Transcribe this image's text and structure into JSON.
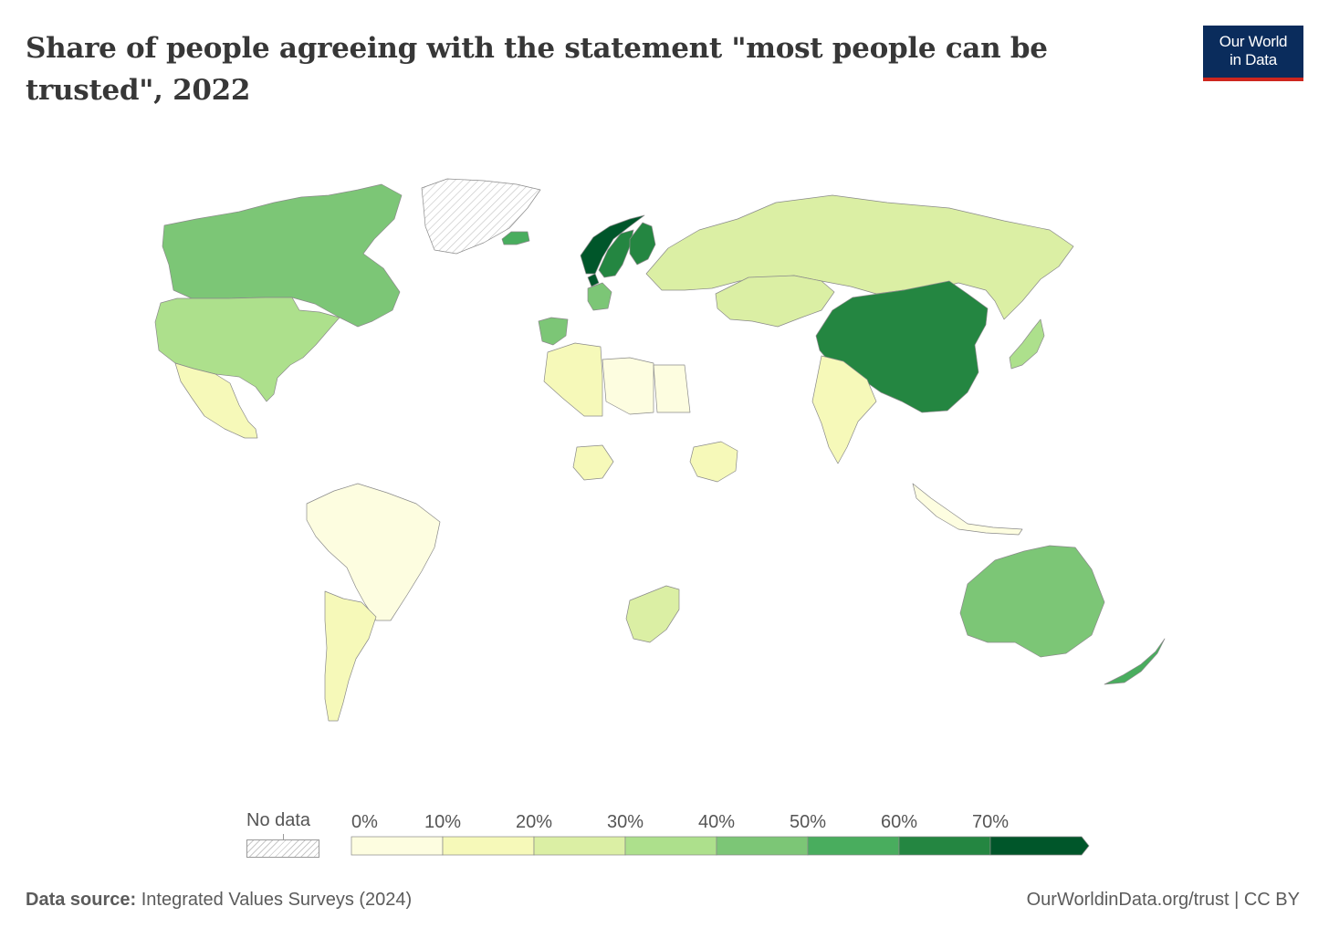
{
  "header": {
    "title": "Share of people agreeing with the statement \"most people can be trusted\", 2022",
    "logo_line1": "Our World",
    "logo_line2": "in Data"
  },
  "legend": {
    "no_data_label": "No data",
    "ticks": [
      "0%",
      "10%",
      "20%",
      "30%",
      "40%",
      "50%",
      "60%",
      "70%"
    ],
    "bin_colors": [
      "#fdfde0",
      "#f6f9b9",
      "#dbefa4",
      "#ade08c",
      "#7cc676",
      "#49ad5e",
      "#248641",
      "#00562a"
    ],
    "no_data_color": "#d0d0d0"
  },
  "chart_data": {
    "type": "choropleth",
    "unit": "%",
    "bins": [
      0,
      10,
      20,
      30,
      40,
      50,
      60,
      70
    ],
    "regions": [
      {
        "name": "Canada",
        "bin": "40-50%"
      },
      {
        "name": "United States",
        "bin": "30-40%"
      },
      {
        "name": "Mexico",
        "bin": "10-20%"
      },
      {
        "name": "Brazil",
        "bin": "0-10%"
      },
      {
        "name": "Argentina",
        "bin": "10-20%"
      },
      {
        "name": "Russia",
        "bin": "20-30%"
      },
      {
        "name": "China",
        "bin": "60-70%"
      },
      {
        "name": "Australia",
        "bin": "40-50%"
      },
      {
        "name": "New Zealand",
        "bin": "50-60%"
      },
      {
        "name": "Norway",
        "bin": "70%+"
      },
      {
        "name": "Sweden",
        "bin": "60-70%"
      },
      {
        "name": "Finland",
        "bin": "60-70%"
      },
      {
        "name": "Denmark",
        "bin": "70%+"
      },
      {
        "name": "Iceland",
        "bin": "50-60%"
      },
      {
        "name": "Spain",
        "bin": "40-50%"
      },
      {
        "name": "Germany",
        "bin": "40-50%"
      },
      {
        "name": "India",
        "bin": "10-20%"
      },
      {
        "name": "Algeria",
        "bin": "10-20%"
      },
      {
        "name": "Libya",
        "bin": "0-10%"
      },
      {
        "name": "Egypt",
        "bin": "0-10%"
      },
      {
        "name": "Nigeria",
        "bin": "10-20%"
      },
      {
        "name": "Ethiopia",
        "bin": "10-20%"
      },
      {
        "name": "South Africa",
        "bin": "20-30%"
      },
      {
        "name": "Greenland",
        "bin": "No data"
      },
      {
        "name": "Kazakhstan",
        "bin": "20-30%"
      },
      {
        "name": "Japan",
        "bin": "30-40%"
      },
      {
        "name": "Indonesia",
        "bin": "0-10%"
      }
    ]
  },
  "footer": {
    "source_label": "Data source:",
    "source_text": "Integrated Values Surveys (2024)",
    "credit": "OurWorldinData.org/trust | CC BY"
  }
}
